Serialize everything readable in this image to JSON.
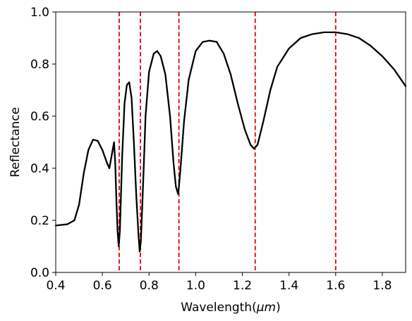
{
  "chart_data": {
    "type": "line",
    "title": "",
    "xlabel": "Wavelength(μm)",
    "xlabel_text": "Wavelength(",
    "xlabel_unit": "μm",
    "xlabel_close": ")",
    "ylabel": "Reflectance",
    "xlim": [
      0.4,
      1.9
    ],
    "ylim": [
      0.0,
      1.0
    ],
    "grid": false,
    "x_ticks": [
      0.4,
      0.6,
      0.8,
      1.0,
      1.2,
      1.4,
      1.6,
      1.8
    ],
    "x_tick_labels": [
      "0.4",
      "0.6",
      "0.8",
      "1.0",
      "1.2",
      "1.4",
      "1.6",
      "1.8"
    ],
    "y_ticks": [
      0.0,
      0.2,
      0.4,
      0.6,
      0.8,
      1.0
    ],
    "y_tick_labels": [
      "0.0",
      "0.2",
      "0.4",
      "0.6",
      "0.8",
      "1.0"
    ],
    "series": [
      {
        "color": "#000000",
        "points": [
          [
            0.4,
            0.18
          ],
          [
            0.45,
            0.185
          ],
          [
            0.48,
            0.2
          ],
          [
            0.5,
            0.26
          ],
          [
            0.52,
            0.38
          ],
          [
            0.54,
            0.47
          ],
          [
            0.56,
            0.51
          ],
          [
            0.58,
            0.505
          ],
          [
            0.6,
            0.47
          ],
          [
            0.62,
            0.42
          ],
          [
            0.63,
            0.4
          ],
          [
            0.64,
            0.45
          ],
          [
            0.65,
            0.5
          ],
          [
            0.655,
            0.42
          ],
          [
            0.66,
            0.28
          ],
          [
            0.665,
            0.16
          ],
          [
            0.67,
            0.1
          ],
          [
            0.675,
            0.16
          ],
          [
            0.685,
            0.45
          ],
          [
            0.695,
            0.65
          ],
          [
            0.705,
            0.72
          ],
          [
            0.715,
            0.73
          ],
          [
            0.725,
            0.67
          ],
          [
            0.735,
            0.5
          ],
          [
            0.745,
            0.3
          ],
          [
            0.755,
            0.14
          ],
          [
            0.76,
            0.08
          ],
          [
            0.765,
            0.12
          ],
          [
            0.775,
            0.35
          ],
          [
            0.785,
            0.6
          ],
          [
            0.8,
            0.77
          ],
          [
            0.82,
            0.84
          ],
          [
            0.835,
            0.85
          ],
          [
            0.85,
            0.83
          ],
          [
            0.87,
            0.76
          ],
          [
            0.89,
            0.6
          ],
          [
            0.905,
            0.42
          ],
          [
            0.915,
            0.33
          ],
          [
            0.925,
            0.3
          ],
          [
            0.935,
            0.4
          ],
          [
            0.95,
            0.58
          ],
          [
            0.97,
            0.74
          ],
          [
            1.0,
            0.85
          ],
          [
            1.03,
            0.885
          ],
          [
            1.06,
            0.89
          ],
          [
            1.09,
            0.885
          ],
          [
            1.12,
            0.84
          ],
          [
            1.15,
            0.76
          ],
          [
            1.18,
            0.65
          ],
          [
            1.21,
            0.55
          ],
          [
            1.235,
            0.49
          ],
          [
            1.25,
            0.475
          ],
          [
            1.265,
            0.49
          ],
          [
            1.29,
            0.58
          ],
          [
            1.32,
            0.7
          ],
          [
            1.35,
            0.79
          ],
          [
            1.4,
            0.86
          ],
          [
            1.45,
            0.9
          ],
          [
            1.5,
            0.915
          ],
          [
            1.55,
            0.922
          ],
          [
            1.6,
            0.922
          ],
          [
            1.65,
            0.915
          ],
          [
            1.7,
            0.9
          ],
          [
            1.75,
            0.87
          ],
          [
            1.8,
            0.83
          ],
          [
            1.85,
            0.78
          ],
          [
            1.9,
            0.715
          ]
        ]
      }
    ],
    "vlines": {
      "color": "#e00000",
      "style": "dashed",
      "x": [
        0.672,
        0.763,
        0.928,
        1.255,
        1.6
      ]
    }
  }
}
